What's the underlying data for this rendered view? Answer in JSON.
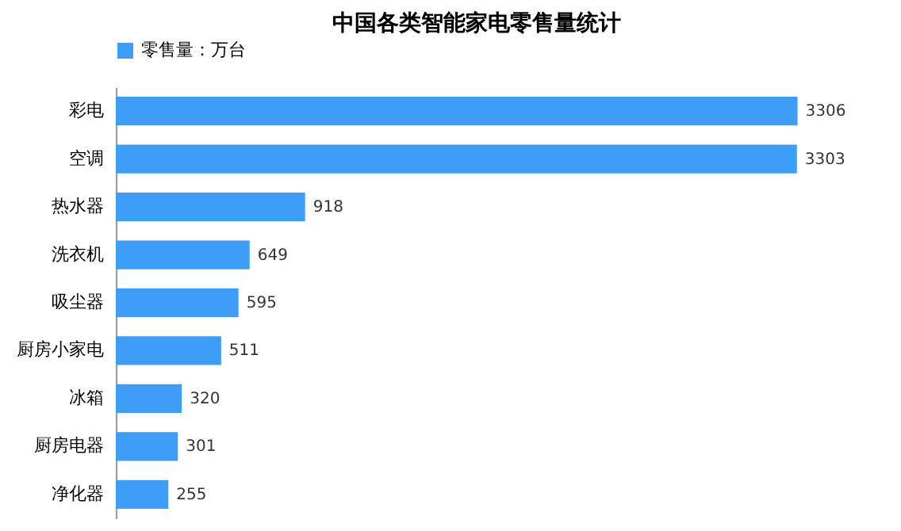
{
  "chart_data": {
    "type": "bar",
    "orientation": "horizontal",
    "title": "中国各类智能家电零售量统计",
    "categories": [
      "彩电",
      "空调",
      "热水器",
      "洗衣机",
      "吸尘器",
      "厨房小家电",
      "冰箱",
      "厨房电器",
      "净化器"
    ],
    "series": [
      {
        "name": "零售量：万台",
        "color": "#3e9ef5",
        "values": [
          3306,
          3303,
          918,
          649,
          595,
          511,
          320,
          301,
          255
        ]
      }
    ],
    "data_labels": true,
    "legend": "top",
    "grid": false
  }
}
